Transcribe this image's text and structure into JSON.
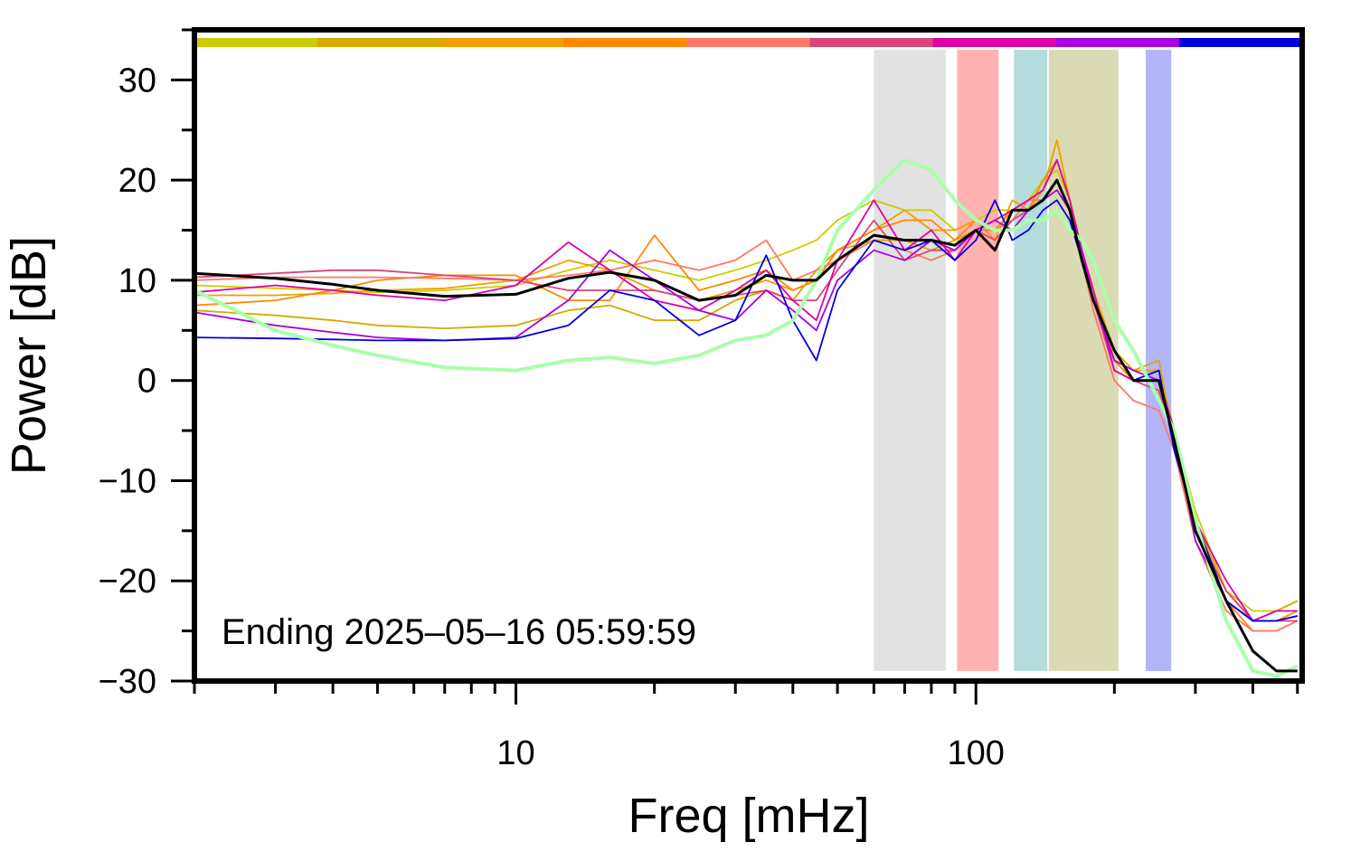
{
  "chart_data": {
    "type": "line",
    "xlabel": "Freq [mHz]",
    "ylabel": "Power [dB]",
    "annotation": "Ending 2025–05–16 05:59:59",
    "xscale": "log",
    "xlim": [
      2,
      512
    ],
    "ylim": [
      -30,
      35
    ],
    "xticks": [
      10,
      100
    ],
    "xminor_ticks": [
      2,
      3,
      4,
      5,
      6,
      7,
      8,
      9,
      20,
      30,
      40,
      50,
      60,
      70,
      80,
      90,
      200,
      300,
      400,
      500
    ],
    "yticks": [
      {
        "value": -30,
        "label": "−30"
      },
      {
        "value": -20,
        "label": "−20"
      },
      {
        "value": -10,
        "label": "−10"
      },
      0,
      10,
      20,
      30
    ],
    "yminor_ticks": [
      -25,
      -15,
      -5,
      5,
      15,
      25,
      35
    ],
    "bands": [
      {
        "x": [
          60,
          86
        ],
        "color": "#e2e2e2"
      },
      {
        "x": [
          91,
          112
        ],
        "color": "#ffb3b0"
      },
      {
        "x": [
          121,
          143
        ],
        "color": "#b4dcdc"
      },
      {
        "x": [
          144,
          204
        ],
        "color": "#dadab4"
      },
      {
        "x": [
          234,
          266
        ],
        "color": "#b4b4f8"
      }
    ],
    "x": [
      2,
      3,
      4,
      5,
      7,
      10,
      13,
      16,
      20,
      25,
      30,
      35,
      40,
      45,
      50,
      60,
      70,
      80,
      90,
      100,
      110,
      120,
      130,
      140,
      150,
      160,
      170,
      180,
      200,
      220,
      250,
      270,
      300,
      350,
      400,
      450,
      500
    ],
    "series": [
      {
        "color": "#cccc00",
        "values": [
          9.5,
          9.2,
          9,
          8.8,
          9,
          9.5,
          11,
          12,
          11,
          10,
          11,
          12,
          13,
          14,
          16,
          18,
          17,
          17,
          15,
          16,
          17,
          17,
          18,
          20,
          21,
          18,
          13,
          9,
          2,
          0,
          1,
          -5,
          -13,
          -21,
          -23,
          -23,
          -22
        ]
      },
      {
        "color": "#d4aa00",
        "values": [
          7,
          6.5,
          6,
          5.5,
          5.2,
          5.5,
          7,
          7.5,
          6,
          6,
          8,
          9,
          8,
          11,
          13,
          14,
          14,
          13,
          14,
          15,
          16,
          17,
          18,
          19,
          22,
          18,
          13,
          9,
          3,
          1,
          2,
          -6,
          -14,
          -21,
          -24,
          -23,
          -22
        ]
      },
      {
        "color": "#f0a000",
        "values": [
          8.5,
          8.5,
          8.7,
          9,
          9.2,
          10,
          12,
          11,
          9,
          8,
          9,
          10,
          9,
          10,
          13,
          15,
          17,
          15,
          15,
          16,
          14,
          18,
          17,
          19,
          24,
          18,
          13,
          9,
          2,
          1,
          1,
          -5,
          -14,
          -21,
          -24,
          -24,
          -23
        ]
      },
      {
        "color": "#ff8800",
        "values": [
          7.5,
          8,
          9,
          10,
          10.5,
          10.5,
          8,
          8,
          14.5,
          9,
          10,
          11,
          9,
          10,
          13,
          15,
          16,
          16,
          14,
          16,
          15,
          17,
          17,
          20,
          22,
          18,
          12,
          8,
          2,
          0,
          0,
          -6,
          -15,
          -22,
          -25,
          -25,
          -24
        ]
      },
      {
        "color": "#ff7766",
        "values": [
          10,
          10.3,
          10.3,
          10.3,
          10.2,
          10,
          10.5,
          11,
          12,
          11,
          12,
          14,
          10,
          11,
          12,
          14,
          13,
          12,
          13,
          15,
          15,
          16,
          18,
          18,
          19,
          17,
          12,
          7,
          0,
          -2,
          -3,
          -7,
          -16,
          -23,
          -25,
          -25,
          -24
        ]
      },
      {
        "color": "#dd4477",
        "values": [
          10.3,
          10.7,
          11,
          11,
          10.5,
          10,
          9,
          9,
          9,
          8,
          8.5,
          9,
          8,
          8,
          11,
          16,
          12,
          13,
          13,
          15,
          14,
          16,
          17,
          18,
          20,
          17,
          12,
          8,
          1,
          0,
          -1,
          -6,
          -15,
          -21,
          -24,
          -24,
          -24
        ]
      },
      {
        "color": "#dd00aa",
        "values": [
          8.8,
          9.5,
          9,
          8.5,
          8,
          9.5,
          13.8,
          11,
          8,
          7,
          9,
          11,
          8,
          6,
          12,
          18,
          13,
          15,
          12,
          15,
          16,
          17,
          18,
          19,
          22,
          18,
          13,
          9,
          1,
          0,
          0,
          -6,
          -14,
          -20,
          -24,
          -23,
          -23
        ]
      },
      {
        "color": "#aa00dd",
        "values": [
          6.8,
          5.5,
          4.8,
          4.3,
          4,
          4.3,
          8,
          13,
          10,
          7,
          6,
          9,
          7,
          5,
          10,
          13,
          12,
          14,
          13,
          15,
          16,
          15,
          17,
          18,
          19,
          17,
          13,
          8,
          2,
          1,
          0,
          -5,
          -16,
          -22,
          -24,
          -24,
          -23.5
        ]
      },
      {
        "color": "#0000dd",
        "values": [
          4.3,
          4.2,
          4.1,
          4,
          4,
          4.2,
          5.5,
          9,
          8,
          4.5,
          6,
          12.5,
          6,
          2,
          9,
          14,
          13,
          14,
          12,
          14,
          18,
          14,
          15,
          17,
          18,
          16,
          12,
          8,
          3,
          0,
          1,
          -7,
          -14,
          -22,
          -24,
          -24,
          -23.5
        ]
      },
      {
        "color": "#aaffaa",
        "width": 4,
        "values": [
          9,
          5,
          3.5,
          2.5,
          1.3,
          1,
          2,
          2.3,
          1.7,
          2.5,
          4,
          4.5,
          6,
          10,
          15,
          19,
          22,
          21,
          18,
          16,
          15,
          15,
          16,
          16,
          17,
          15,
          14,
          12,
          6,
          3,
          -2,
          -5,
          -14,
          -24,
          -29,
          -29.5,
          -28.5
        ]
      },
      {
        "color": "#000000",
        "width": 3,
        "values": [
          10.7,
          10.2,
          9.6,
          9,
          8.4,
          8.6,
          10.2,
          10.8,
          10,
          8,
          8.5,
          10.5,
          10,
          10,
          12,
          14.5,
          14,
          14,
          13.5,
          15,
          13,
          17,
          17,
          18,
          20,
          17,
          12,
          8,
          3,
          0,
          0,
          -6,
          -15,
          -22,
          -27,
          -29,
          -29
        ]
      }
    ]
  }
}
